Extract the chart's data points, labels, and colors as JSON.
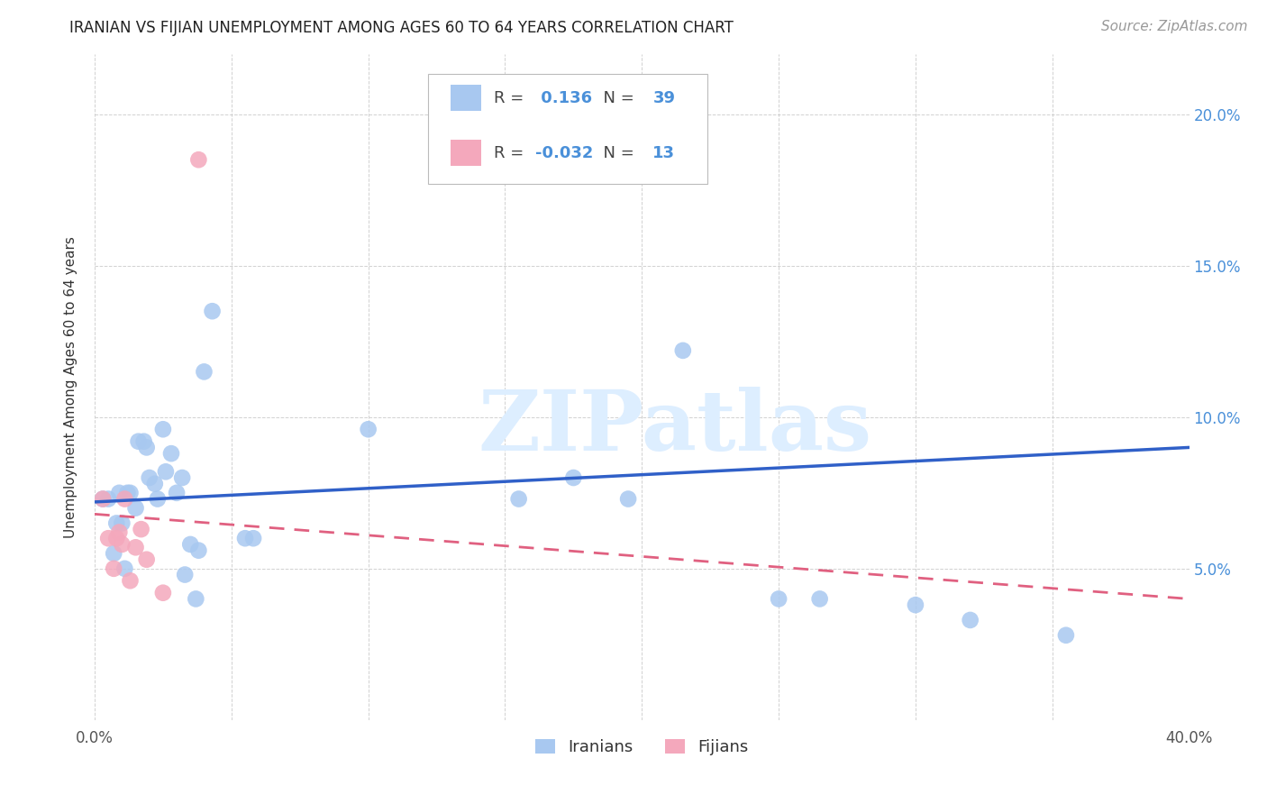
{
  "title": "IRANIAN VS FIJIAN UNEMPLOYMENT AMONG AGES 60 TO 64 YEARS CORRELATION CHART",
  "source": "Source: ZipAtlas.com",
  "ylabel": "Unemployment Among Ages 60 to 64 years",
  "xlim": [
    0.0,
    0.4
  ],
  "ylim": [
    0.0,
    0.22
  ],
  "background_color": "#ffffff",
  "watermark_text": "ZIPatlas",
  "iranian_R": 0.136,
  "iranian_N": 39,
  "fijian_R": -0.032,
  "fijian_N": 13,
  "iranian_color": "#a8c8f0",
  "fijian_color": "#f4a8bc",
  "iranian_line_color": "#3060c8",
  "fijian_line_color": "#e06080",
  "iranians_x": [
    0.003,
    0.005,
    0.007,
    0.008,
    0.009,
    0.01,
    0.011,
    0.012,
    0.013,
    0.015,
    0.016,
    0.018,
    0.019,
    0.02,
    0.022,
    0.023,
    0.025,
    0.026,
    0.028,
    0.03,
    0.032,
    0.033,
    0.035,
    0.037,
    0.038,
    0.04,
    0.043,
    0.055,
    0.058,
    0.1,
    0.155,
    0.175,
    0.195,
    0.215,
    0.25,
    0.265,
    0.3,
    0.32,
    0.355
  ],
  "iranians_y": [
    0.073,
    0.073,
    0.055,
    0.065,
    0.075,
    0.065,
    0.05,
    0.075,
    0.075,
    0.07,
    0.092,
    0.092,
    0.09,
    0.08,
    0.078,
    0.073,
    0.096,
    0.082,
    0.088,
    0.075,
    0.08,
    0.048,
    0.058,
    0.04,
    0.056,
    0.115,
    0.135,
    0.06,
    0.06,
    0.096,
    0.073,
    0.08,
    0.073,
    0.122,
    0.04,
    0.04,
    0.038,
    0.033,
    0.028
  ],
  "fijians_x": [
    0.003,
    0.005,
    0.007,
    0.008,
    0.009,
    0.01,
    0.011,
    0.013,
    0.015,
    0.017,
    0.019,
    0.025,
    0.038
  ],
  "fijians_y": [
    0.073,
    0.06,
    0.05,
    0.06,
    0.062,
    0.058,
    0.073,
    0.046,
    0.057,
    0.063,
    0.053,
    0.042,
    0.185
  ],
  "iranian_trend_x0": 0.0,
  "iranian_trend_y0": 0.072,
  "iranian_trend_x1": 0.4,
  "iranian_trend_y1": 0.09,
  "fijian_trend_x0": 0.0,
  "fijian_trend_y0": 0.068,
  "fijian_trend_x1": 0.4,
  "fijian_trend_y1": 0.04
}
